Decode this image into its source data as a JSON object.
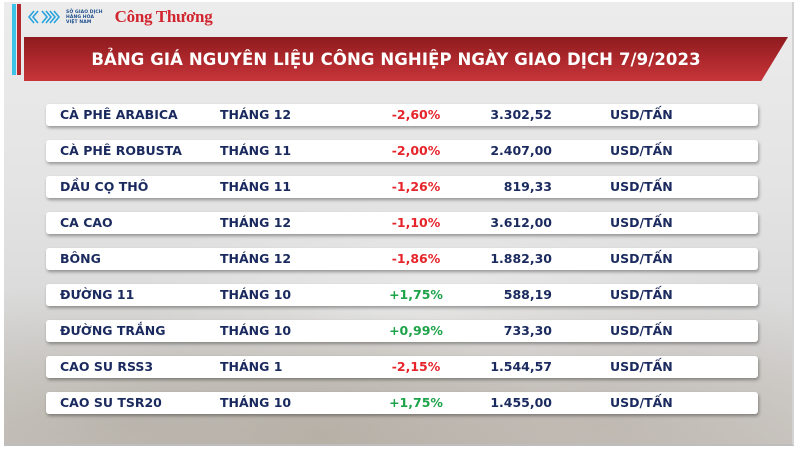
{
  "header": {
    "logo_org_lines": [
      "SỞ GIAO DỊCH",
      "HÀNG HÓA",
      "VIỆT NAM"
    ],
    "logo_brand": "Công Thương",
    "title": "BẢNG GIÁ NGUYÊN LIỆU CÔNG NGHIỆP NGÀY GIAO DỊCH 7/9/2023"
  },
  "colors": {
    "banner_red": "#b3282d",
    "accent_cyan": "#3ec3e8",
    "text_navy": "#1b2a5e",
    "negative": "#e5252b",
    "positive": "#1fa34a"
  },
  "table": {
    "rows": [
      {
        "name": "CÀ PHÊ ARABICA",
        "month": "THÁNG 12",
        "change": "-2,60%",
        "direction": "down",
        "price": "3.302,52",
        "unit": "USD/TẤN"
      },
      {
        "name": "CÀ PHÊ ROBUSTA",
        "month": "THÁNG 11",
        "change": "-2,00%",
        "direction": "down",
        "price": "2.407,00",
        "unit": "USD/TẤN"
      },
      {
        "name": "DẦU CỌ THÔ",
        "month": "THÁNG 11",
        "change": "-1,26%",
        "direction": "down",
        "price": "819,33",
        "unit": "USD/TẤN"
      },
      {
        "name": "CA CAO",
        "month": "THÁNG 12",
        "change": "-1,10%",
        "direction": "down",
        "price": "3.612,00",
        "unit": "USD/TẤN"
      },
      {
        "name": "BÔNG",
        "month": "THÁNG 12",
        "change": "-1,86%",
        "direction": "down",
        "price": "1.882,30",
        "unit": "USD/TẤN"
      },
      {
        "name": "ĐƯỜNG 11",
        "month": "THÁNG 10",
        "change": "+1,75%",
        "direction": "up",
        "price": "588,19",
        "unit": "USD/TẤN"
      },
      {
        "name": "ĐƯỜNG TRẮNG",
        "month": "THÁNG 10",
        "change": "+0,99%",
        "direction": "up",
        "price": "733,30",
        "unit": "USD/TẤN"
      },
      {
        "name": "CAO SU RSS3",
        "month": "THÁNG 1",
        "change": "-2,15%",
        "direction": "down",
        "price": "1.544,57",
        "unit": "USD/TẤN"
      },
      {
        "name": "CAO SU TSR20",
        "month": "THÁNG 10",
        "change": "+1,75%",
        "direction": "up",
        "price": "1.455,00",
        "unit": "USD/TẤN"
      }
    ]
  }
}
